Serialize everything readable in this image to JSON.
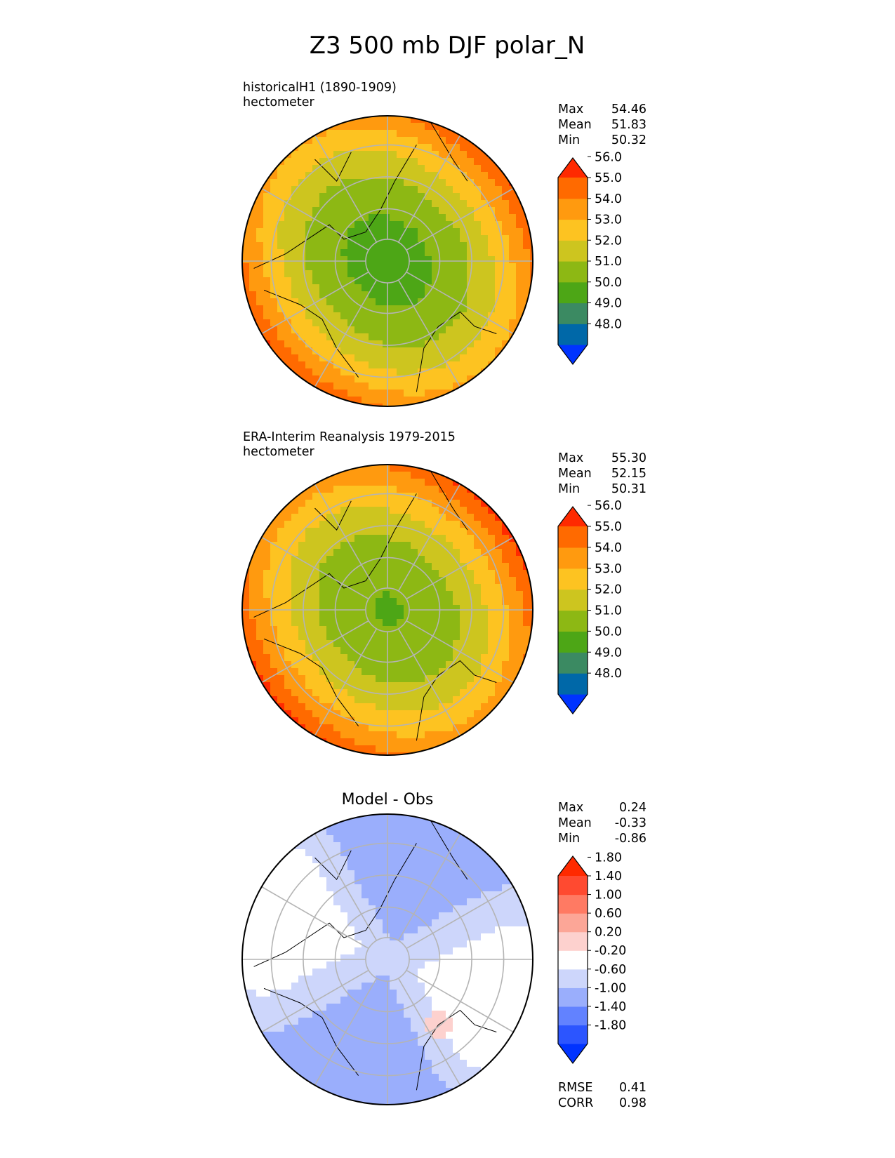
{
  "figure": {
    "title": "Z3 500 mb DJF polar_N"
  },
  "chart_data": [
    {
      "type": "polar_map",
      "name": "test",
      "title_line1": "historicalH1 (1890-1909)",
      "title_line2": "hectometer",
      "stats": [
        {
          "label": "Max",
          "value": "54.46"
        },
        {
          "label": "Mean",
          "value": "51.83"
        },
        {
          "label": "Min",
          "value": "50.32"
        }
      ],
      "levels": [
        48.0,
        49.0,
        50.0,
        51.0,
        52.0,
        53.0,
        54.0,
        55.0,
        56.0
      ],
      "tick_labels": [
        "48.0",
        "49.0",
        "50.0",
        "51.0",
        "52.0",
        "53.0",
        "54.0",
        "55.0",
        "56.0"
      ],
      "colors": [
        "#0033ff",
        "#0068a8",
        "#3b8a62",
        "#4da616",
        "#8db814",
        "#cdc51f",
        "#fdc321",
        "#ff9a0f",
        "#ff6a00",
        "#ff2a00"
      ]
    },
    {
      "type": "polar_map",
      "name": "reference",
      "title_line1": "ERA-Interim Reanalysis 1979-2015",
      "title_line2": "hectometer",
      "stats": [
        {
          "label": "Max",
          "value": "55.30"
        },
        {
          "label": "Mean",
          "value": "52.15"
        },
        {
          "label": "Min",
          "value": "50.31"
        }
      ],
      "levels": [
        48.0,
        49.0,
        50.0,
        51.0,
        52.0,
        53.0,
        54.0,
        55.0,
        56.0
      ],
      "tick_labels": [
        "48.0",
        "49.0",
        "50.0",
        "51.0",
        "52.0",
        "53.0",
        "54.0",
        "55.0",
        "56.0"
      ],
      "colors": [
        "#0033ff",
        "#0068a8",
        "#3b8a62",
        "#4da616",
        "#8db814",
        "#cdc51f",
        "#fdc321",
        "#ff9a0f",
        "#ff6a00",
        "#ff2a00"
      ]
    },
    {
      "type": "polar_map",
      "name": "difference",
      "center_title": "Model - Obs",
      "stats": [
        {
          "label": "Max",
          "value": "0.24"
        },
        {
          "label": "Mean",
          "value": "-0.33"
        },
        {
          "label": "Min",
          "value": "-0.86"
        }
      ],
      "levels": [
        -1.8,
        -1.4,
        -1.0,
        -0.6,
        -0.2,
        0.2,
        0.6,
        1.0,
        1.4,
        1.8
      ],
      "tick_labels": [
        "-1.80",
        "-1.40",
        "-1.00",
        "-0.60",
        "-0.20",
        "0.20",
        "0.60",
        "1.00",
        "1.40",
        "1.80"
      ],
      "colors": [
        "#0033ff",
        "#2c55ff",
        "#6282ff",
        "#9aaefc",
        "#cdd6fb",
        "#ffffff",
        "#fdd1ce",
        "#fca697",
        "#ff7a63",
        "#ff4a30",
        "#ff2a00"
      ],
      "metrics": [
        {
          "label": "RMSE",
          "value": "0.41"
        },
        {
          "label": "CORR",
          "value": "0.98"
        }
      ]
    }
  ]
}
